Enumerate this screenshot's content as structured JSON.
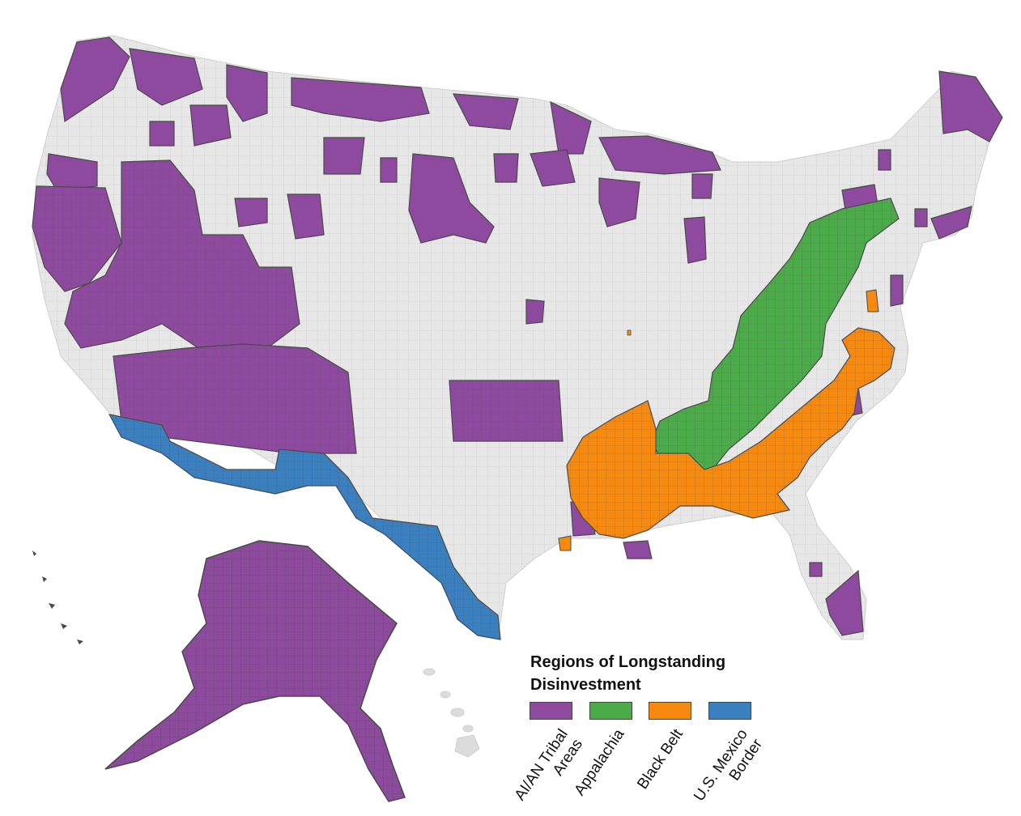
{
  "legend": {
    "title_line1": "Regions of Longstanding",
    "title_line2": "Disinvestment",
    "items": [
      {
        "line1": "AI/AN Tribal",
        "line2": "Areas",
        "color": "#8e4a9e"
      },
      {
        "line1": "Appalachia",
        "line2": "",
        "color": "#4aab48"
      },
      {
        "line1": "Black Belt",
        "line2": "",
        "color": "#f7890f"
      },
      {
        "line1": "U.S. Mexico",
        "line2": "Border",
        "color": "#3a7fbf"
      }
    ]
  },
  "colors": {
    "background_county": "#e7e7e7",
    "county_border": "#cfcfcf",
    "region_border": "#4a4a4a"
  }
}
